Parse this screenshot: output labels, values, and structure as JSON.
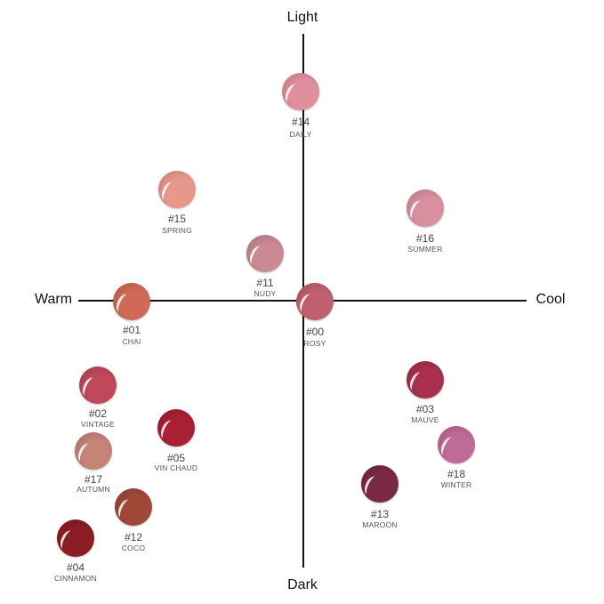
{
  "axes": {
    "top": "Light",
    "bottom": "Dark",
    "left": "Warm",
    "right": "Cool"
  },
  "shades": [
    {
      "number": "#14",
      "name": "DAILY",
      "color": "#e0909c"
    },
    {
      "number": "#15",
      "name": "SPRING",
      "color": "#e8988a"
    },
    {
      "number": "#16",
      "name": "SUMMER",
      "color": "#d890a0"
    },
    {
      "number": "#11",
      "name": "NUDY",
      "color": "#c98a94"
    },
    {
      "number": "#01",
      "name": "CHAI",
      "color": "#d06a58"
    },
    {
      "number": "#00",
      "name": "ROSY",
      "color": "#c0606e"
    },
    {
      "number": "#03",
      "name": "MAUVE",
      "color": "#a8304e"
    },
    {
      "number": "#02",
      "name": "VINTAGE",
      "color": "#c04858"
    },
    {
      "number": "#05",
      "name": "VIN CHAUD",
      "color": "#a82032"
    },
    {
      "number": "#17",
      "name": "AUTUMN",
      "color": "#c48478"
    },
    {
      "number": "#18",
      "name": "WINTER",
      "color": "#c06a96"
    },
    {
      "number": "#13",
      "name": "MAROON",
      "color": "#7a2a42"
    },
    {
      "number": "#12",
      "name": "COCO",
      "color": "#a04838"
    },
    {
      "number": "#04",
      "name": "CINNAMON",
      "color": "#8a1e24"
    }
  ]
}
